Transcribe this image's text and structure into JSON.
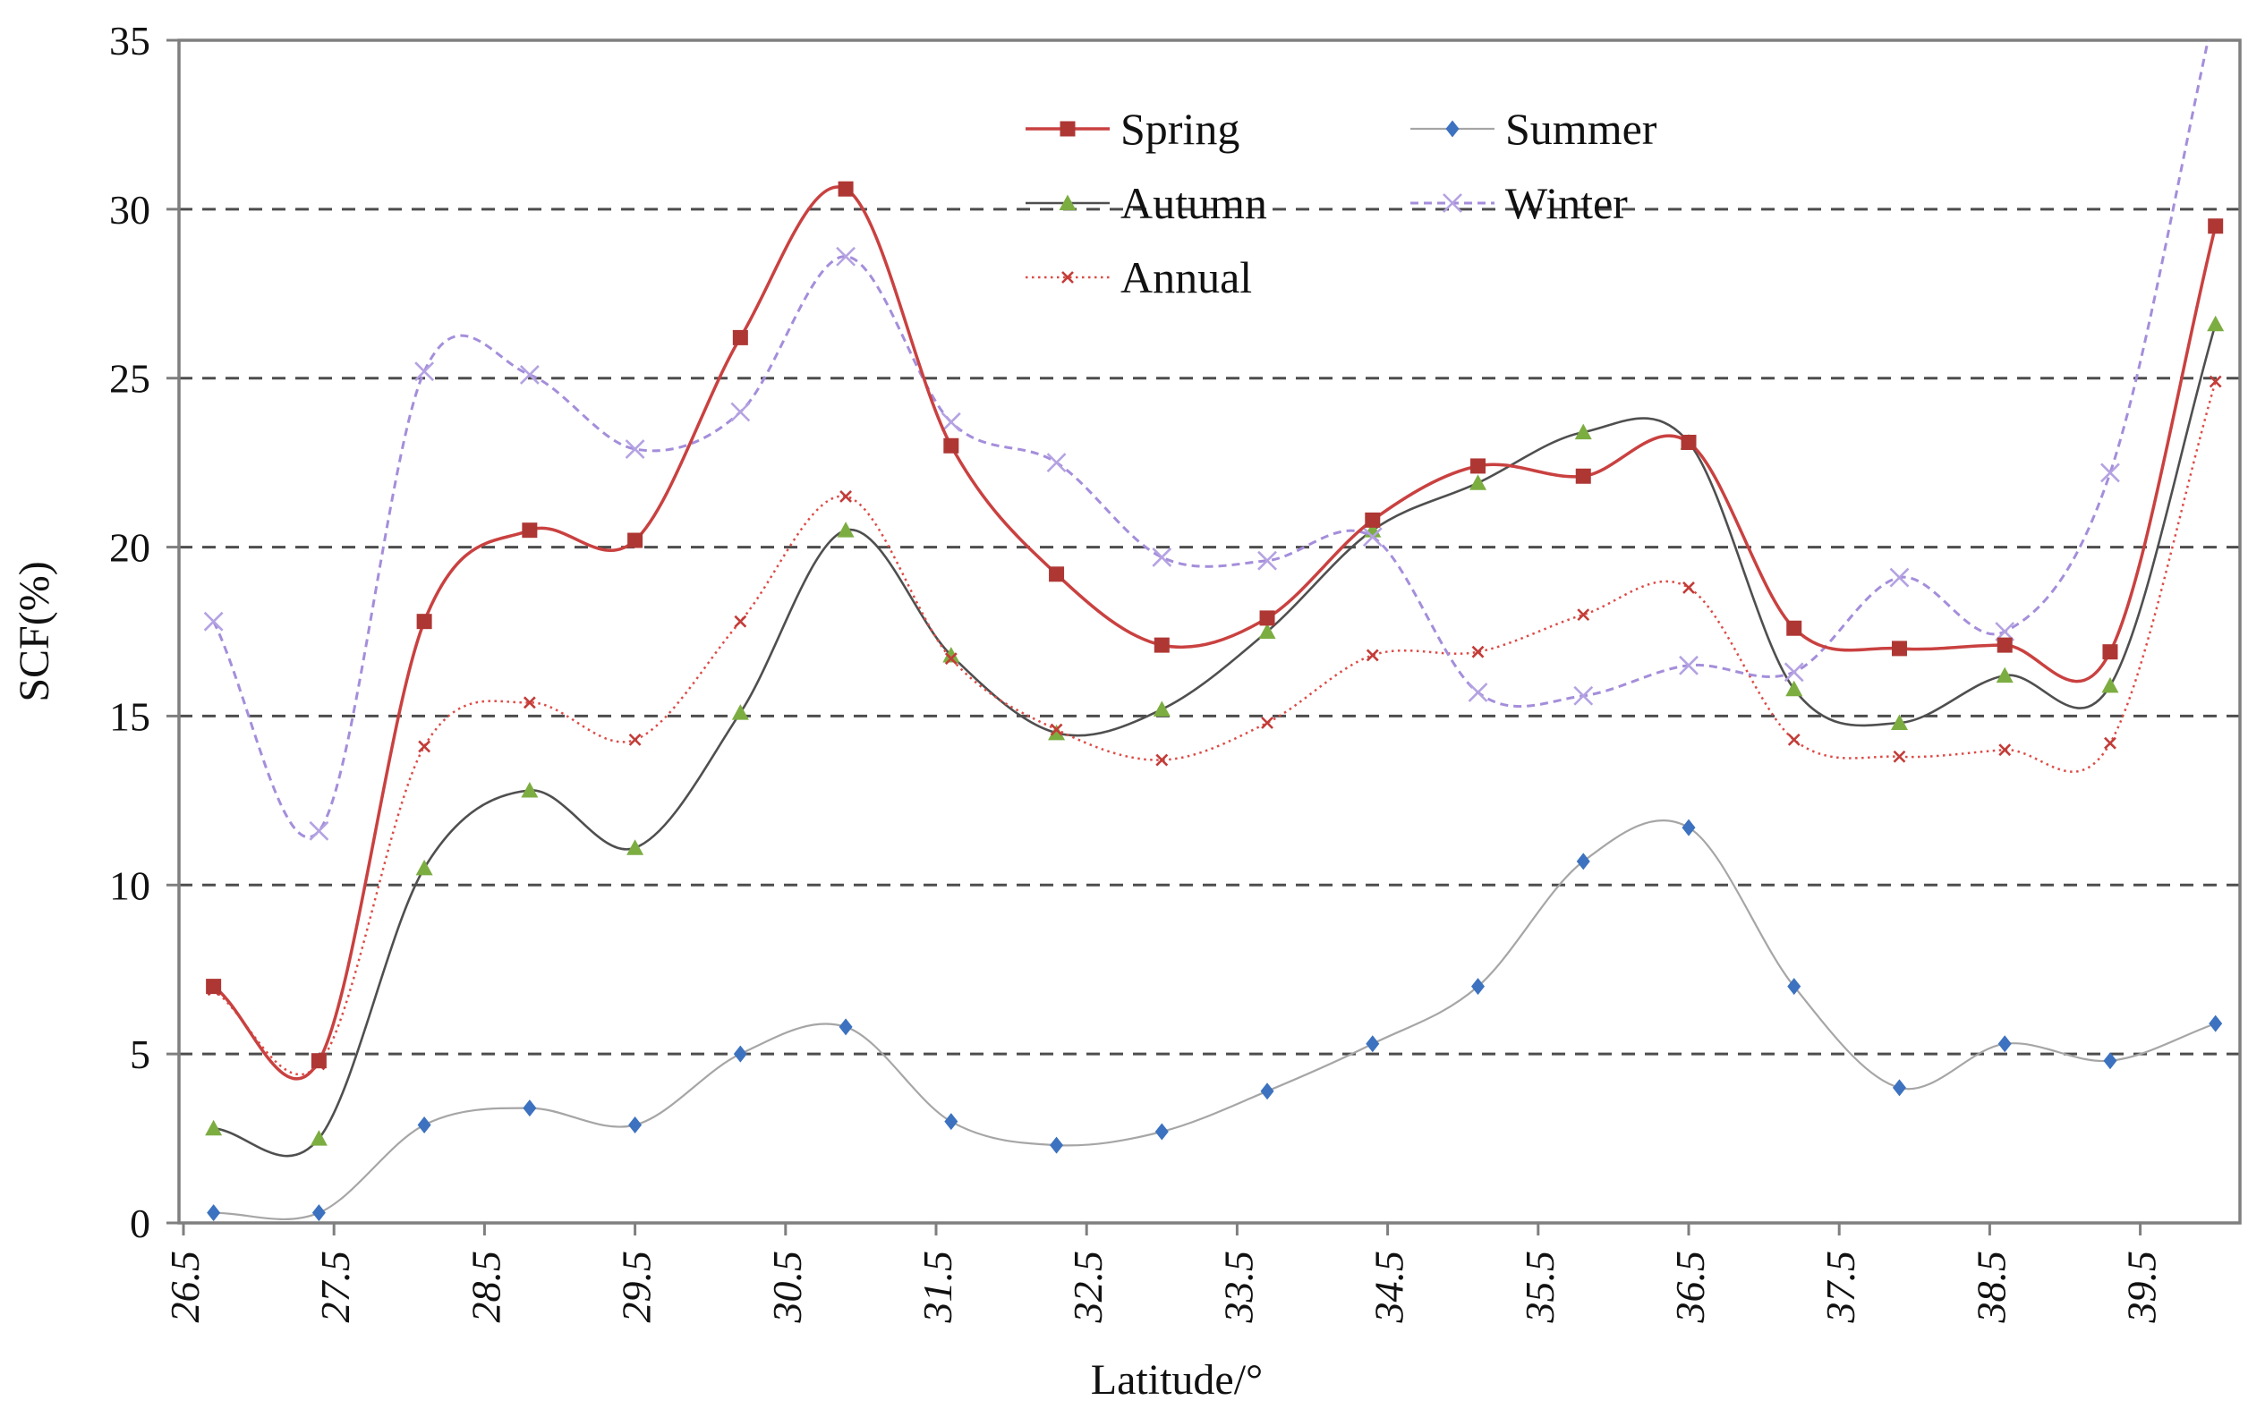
{
  "chart_data": {
    "type": "line",
    "title": "",
    "xlabel": "Latitude/°",
    "ylabel": "SCF(%)",
    "xlim": [
      26.5,
      40.2
    ],
    "ylim": [
      0,
      35
    ],
    "grid": "horizontal-dashed",
    "legend_position": "top-center-inside",
    "legend_columns": 2,
    "x_ticks": [
      "26.5",
      "27.5",
      "28.5",
      "29.5",
      "30.5",
      "31.5",
      "32.5",
      "33.5",
      "34.5",
      "35.5",
      "36.5",
      "37.5",
      "38.5",
      "39.5"
    ],
    "y_ticks": [
      "0",
      "5",
      "10",
      "15",
      "20",
      "25",
      "30",
      "35"
    ],
    "x": [
      26.7,
      27.4,
      28.1,
      28.8,
      29.5,
      30.2,
      30.9,
      31.6,
      32.3,
      33.0,
      33.7,
      34.4,
      35.1,
      35.8,
      36.5,
      37.2,
      37.9,
      38.6,
      39.3,
      40.0
    ],
    "series": [
      {
        "name": "Spring",
        "line_color": "#C94140",
        "line_style": "solid",
        "line_width": 3.5,
        "marker": "square",
        "marker_color": "#AE3734",
        "values": [
          7.0,
          4.8,
          17.8,
          20.5,
          20.2,
          26.2,
          30.6,
          23.0,
          19.2,
          17.1,
          17.9,
          20.8,
          22.4,
          22.1,
          23.1,
          17.6,
          17.0,
          17.1,
          16.9,
          29.5
        ]
      },
      {
        "name": "Summer",
        "line_color": "#A6A6A6",
        "line_style": "solid",
        "line_width": 2.2,
        "marker": "diamond",
        "marker_color": "#3C72BF",
        "values": [
          0.3,
          0.3,
          2.9,
          3.4,
          2.9,
          5.0,
          5.8,
          3.0,
          2.3,
          2.7,
          3.9,
          5.3,
          7.0,
          10.7,
          11.7,
          7.0,
          4.0,
          5.3,
          4.8,
          5.9
        ]
      },
      {
        "name": "Autumn",
        "line_color": "#4F4F4F",
        "line_style": "solid",
        "line_width": 2.6,
        "marker": "triangle",
        "marker_color": "#7CAD41",
        "values": [
          2.8,
          2.5,
          10.5,
          12.8,
          11.1,
          15.1,
          20.5,
          16.8,
          14.5,
          15.2,
          17.5,
          20.5,
          21.9,
          23.4,
          23.1,
          15.8,
          14.8,
          16.2,
          15.9,
          26.6
        ]
      },
      {
        "name": "Winter",
        "line_color": "#A48EDB",
        "line_style": "dashed",
        "line_width": 3.0,
        "marker": "x-cross",
        "marker_color": "#B4A2E2",
        "values": [
          17.8,
          11.6,
          25.2,
          25.1,
          22.9,
          24.0,
          28.6,
          23.7,
          22.5,
          19.7,
          19.6,
          20.3,
          15.7,
          15.6,
          16.5,
          16.3,
          19.1,
          17.5,
          22.2,
          36.0
        ]
      },
      {
        "name": "Annual",
        "line_color": "#DC4B46",
        "line_style": "dotted",
        "line_width": 2.5,
        "marker": "x-small",
        "marker_color": "#C23C38",
        "values": [
          6.9,
          4.7,
          14.1,
          15.4,
          14.3,
          17.8,
          21.5,
          16.7,
          14.6,
          13.7,
          14.8,
          16.8,
          16.9,
          18.0,
          18.8,
          14.3,
          13.8,
          14.0,
          14.2,
          24.9
        ]
      }
    ],
    "legend_order": [
      "Spring",
      "Summer",
      "Autumn",
      "Winter",
      "Annual"
    ]
  },
  "colors": {
    "grid": "#4D4D4D",
    "axis": "#7F7F7F",
    "text": "#111111",
    "background": "#FFFFFF"
  }
}
